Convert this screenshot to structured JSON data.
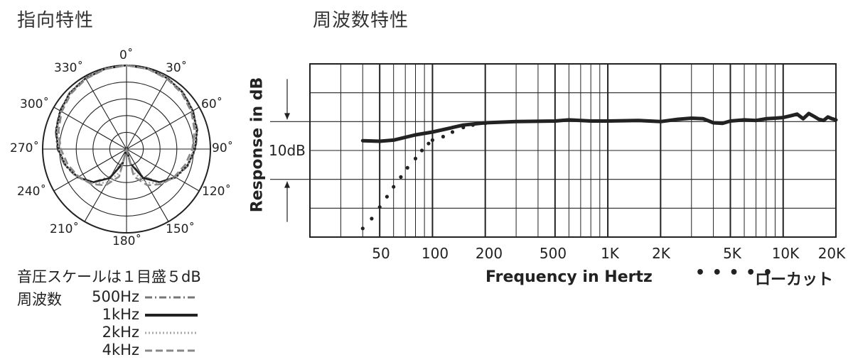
{
  "polar": {
    "title": "指向特性",
    "angle_labels": [
      "0˚",
      "30˚",
      "60˚",
      "90˚",
      "120˚",
      "150˚",
      "180˚",
      "210˚",
      "240˚",
      "270˚",
      "300˚",
      "330˚"
    ],
    "scale_note": "音圧スケールは１目盛５dB",
    "legend_heading": "周波数",
    "legend": [
      {
        "label": "500Hz",
        "style": "dash-dot",
        "color": "#777777"
      },
      {
        "label": "1kHz",
        "style": "solid",
        "color": "#222222"
      },
      {
        "label": "2kHz",
        "style": "dotted",
        "color": "#aaaaaa"
      },
      {
        "label": "4kHz",
        "style": "dashed",
        "color": "#888888"
      }
    ]
  },
  "response": {
    "title": "周波数特性",
    "ylabel": "Response in dB",
    "scale_label": "10dB",
    "xlabel": "Frequency in Hertz",
    "x_ticks": [
      "50",
      "100",
      "200",
      "500",
      "1K",
      "2K",
      "5K",
      "10K",
      "20K"
    ],
    "lowcut_label": "ローカット",
    "lowcut_marker": "• • • • •"
  },
  "chart_data": [
    {
      "type": "line",
      "title": "周波数特性",
      "xlabel": "Frequency in Hertz",
      "ylabel": "Response in dB",
      "x_scale": "log",
      "xlim": [
        20,
        20000
      ],
      "ylim": [
        -20,
        10
      ],
      "grid": true,
      "series": [
        {
          "style": "solid",
          "color": "#222222",
          "points": [
            [
              40,
              -3.3
            ],
            [
              50,
              -3.4
            ],
            [
              60,
              -3.2
            ],
            [
              80,
              -2.3
            ],
            [
              100,
              -1.8
            ],
            [
              150,
              -0.6
            ],
            [
              200,
              -0.2
            ],
            [
              300,
              0.0
            ],
            [
              500,
              0.1
            ],
            [
              600,
              0.3
            ],
            [
              800,
              0.1
            ],
            [
              1000,
              0.1
            ],
            [
              1500,
              0.2
            ],
            [
              2000,
              0.0
            ],
            [
              2500,
              0.4
            ],
            [
              3000,
              0.6
            ],
            [
              3500,
              0.5
            ],
            [
              4000,
              -0.2
            ],
            [
              4500,
              -0.3
            ],
            [
              5000,
              0.1
            ],
            [
              6000,
              0.3
            ],
            [
              7000,
              0.2
            ],
            [
              8000,
              0.5
            ],
            [
              9000,
              0.6
            ],
            [
              10000,
              0.7
            ],
            [
              11000,
              1.0
            ],
            [
              12000,
              1.3
            ],
            [
              13000,
              0.5
            ],
            [
              14000,
              1.4
            ],
            [
              15000,
              0.9
            ],
            [
              16000,
              0.4
            ],
            [
              17000,
              0.2
            ],
            [
              18000,
              0.8
            ],
            [
              19000,
              0.5
            ],
            [
              20000,
              0.3
            ]
          ]
        },
        {
          "name": "ローカット",
          "style": "dotted",
          "color": "#222222",
          "points": [
            [
              40,
              -18.5
            ],
            [
              45,
              -16.8
            ],
            [
              50,
              -14.8
            ],
            [
              55,
              -13.0
            ],
            [
              60,
              -11.3
            ],
            [
              66,
              -9.6
            ],
            [
              72,
              -8.0
            ],
            [
              80,
              -6.4
            ],
            [
              87,
              -5.0
            ],
            [
              95,
              -3.8
            ],
            [
              100,
              -3.2
            ],
            [
              115,
              -2.6
            ],
            [
              130,
              -1.8
            ],
            [
              150,
              -1.0
            ],
            [
              170,
              -0.6
            ],
            [
              200,
              -0.3
            ]
          ]
        }
      ]
    },
    {
      "type": "polar",
      "title": "指向特性",
      "theta_unit": "degrees",
      "r_unit": "dB",
      "r_range": [
        -25,
        0
      ],
      "r_step": 5,
      "series": [
        {
          "name": "500Hz",
          "style": "dash-dot",
          "color": "#777777",
          "theta": [
            0,
            15,
            30,
            45,
            60,
            75,
            90,
            105,
            120,
            135,
            150,
            165,
            180
          ],
          "r": [
            0,
            -0.2,
            -0.5,
            -1.1,
            -2.1,
            -3.1,
            -4.4,
            -6.0,
            -8.0,
            -11.0,
            -15.5,
            -21.0,
            -25.0
          ]
        },
        {
          "name": "1kHz",
          "style": "solid",
          "color": "#222222",
          "theta": [
            0,
            15,
            30,
            45,
            60,
            75,
            90,
            105,
            120,
            135,
            150,
            165,
            180
          ],
          "r": [
            0,
            -0.2,
            -0.6,
            -1.2,
            -2.2,
            -3.3,
            -4.6,
            -6.2,
            -8.2,
            -11.0,
            -15.0,
            -20.5,
            -25.0
          ]
        },
        {
          "name": "2kHz",
          "style": "dotted",
          "color": "#aaaaaa",
          "theta": [
            0,
            15,
            30,
            45,
            60,
            75,
            90,
            105,
            120,
            135,
            150,
            165,
            180
          ],
          "r": [
            0,
            -0.2,
            -0.6,
            -1.3,
            -2.4,
            -3.5,
            -4.8,
            -6.3,
            -8.1,
            -10.5,
            -13.5,
            -18.0,
            -25.0
          ]
        },
        {
          "name": "4kHz",
          "style": "dashed",
          "color": "#888888",
          "theta": [
            0,
            15,
            30,
            45,
            60,
            75,
            90,
            105,
            120,
            135,
            150,
            165,
            180
          ],
          "r": [
            0,
            -0.3,
            -0.8,
            -1.6,
            -2.7,
            -4.0,
            -5.4,
            -6.9,
            -8.5,
            -10.2,
            -12.5,
            -16.5,
            -25.0
          ]
        }
      ]
    }
  ]
}
